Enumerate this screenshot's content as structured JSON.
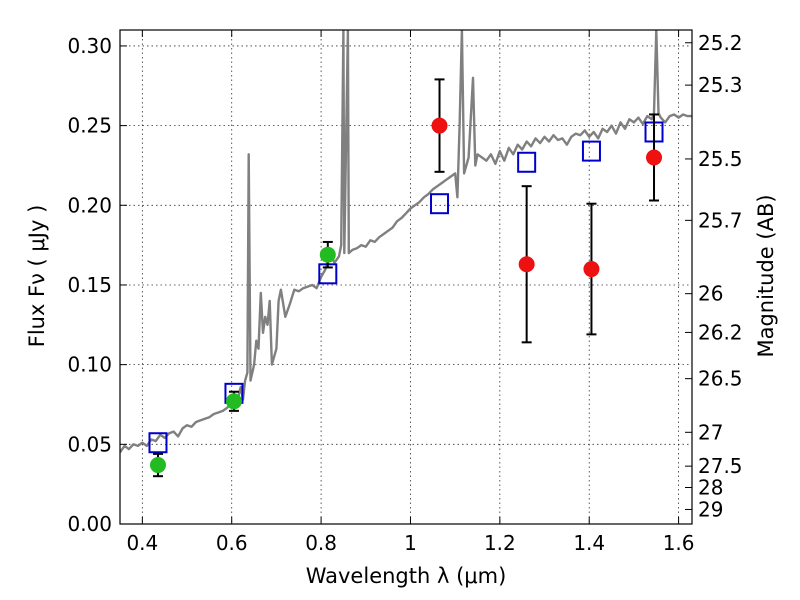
{
  "chart_data": {
    "type": "scatter",
    "xlabel": "Wavelength  λ (μm)",
    "ylabel": "Flux  Fν  ( μJy )",
    "ylabel_right": "Magnitude (AB)",
    "xlim": [
      0.35,
      1.63
    ],
    "ylim": [
      0.0,
      0.31
    ],
    "grid": true,
    "x_ticks": [
      0.4,
      0.6,
      0.8,
      1.0,
      1.2,
      1.4,
      1.6
    ],
    "x_tick_labels": [
      "0.4",
      "0.6",
      "0.8",
      "1",
      "1.2",
      "1.4",
      "1.6"
    ],
    "y_ticks": [
      0.0,
      0.05,
      0.1,
      0.15,
      0.2,
      0.25,
      0.3
    ],
    "y_tick_labels": [
      "0.00",
      "0.05",
      "0.10",
      "0.15",
      "0.20",
      "0.25",
      "0.30"
    ],
    "right_ticks": [
      {
        "mag": 25.2,
        "label": "25.2"
      },
      {
        "mag": 25.3,
        "label": "25.3"
      },
      {
        "mag": 25.5,
        "label": "25.5"
      },
      {
        "mag": 25.7,
        "label": "25.7"
      },
      {
        "mag": 26.0,
        "label": "26"
      },
      {
        "mag": 26.2,
        "label": "26.2"
      },
      {
        "mag": 26.5,
        "label": "26.5"
      },
      {
        "mag": 27.0,
        "label": "27"
      },
      {
        "mag": 27.5,
        "label": "27.5"
      },
      {
        "mag": 28.0,
        "label": "28"
      },
      {
        "mag": 29.0,
        "label": "29"
      }
    ],
    "series": [
      {
        "type": "line",
        "color": "#808080",
        "points": [
          [
            0.35,
            0.045
          ],
          [
            0.36,
            0.049
          ],
          [
            0.37,
            0.047
          ],
          [
            0.38,
            0.05
          ],
          [
            0.39,
            0.049
          ],
          [
            0.4,
            0.051
          ],
          [
            0.41,
            0.049
          ],
          [
            0.42,
            0.053
          ],
          [
            0.43,
            0.052
          ],
          [
            0.44,
            0.056
          ],
          [
            0.45,
            0.054
          ],
          [
            0.46,
            0.057
          ],
          [
            0.47,
            0.058
          ],
          [
            0.48,
            0.055
          ],
          [
            0.49,
            0.06
          ],
          [
            0.5,
            0.062
          ],
          [
            0.51,
            0.061
          ],
          [
            0.52,
            0.064
          ],
          [
            0.53,
            0.065
          ],
          [
            0.54,
            0.066
          ],
          [
            0.55,
            0.067
          ],
          [
            0.56,
            0.069
          ],
          [
            0.57,
            0.07
          ],
          [
            0.58,
            0.071
          ],
          [
            0.59,
            0.073
          ],
          [
            0.6,
            0.076
          ],
          [
            0.61,
            0.078
          ],
          [
            0.615,
            0.08
          ],
          [
            0.62,
            0.086
          ],
          [
            0.625,
            0.078
          ],
          [
            0.63,
            0.09
          ],
          [
            0.635,
            0.095
          ],
          [
            0.638,
            0.232
          ],
          [
            0.642,
            0.09
          ],
          [
            0.65,
            0.1
          ],
          [
            0.655,
            0.115
          ],
          [
            0.66,
            0.11
          ],
          [
            0.665,
            0.145
          ],
          [
            0.67,
            0.12
          ],
          [
            0.675,
            0.13
          ],
          [
            0.68,
            0.125
          ],
          [
            0.685,
            0.14
          ],
          [
            0.69,
            0.1
          ],
          [
            0.7,
            0.11
          ],
          [
            0.705,
            0.14
          ],
          [
            0.71,
            0.147
          ],
          [
            0.72,
            0.13
          ],
          [
            0.73,
            0.138
          ],
          [
            0.74,
            0.147
          ],
          [
            0.75,
            0.146
          ],
          [
            0.76,
            0.148
          ],
          [
            0.77,
            0.149
          ],
          [
            0.78,
            0.15
          ],
          [
            0.79,
            0.148
          ],
          [
            0.8,
            0.155
          ],
          [
            0.81,
            0.16
          ],
          [
            0.82,
            0.17
          ],
          [
            0.83,
            0.164
          ],
          [
            0.84,
            0.168
          ],
          [
            0.845,
            0.175
          ],
          [
            0.85,
            0.31
          ],
          [
            0.852,
            0.17
          ],
          [
            0.86,
            0.31
          ],
          [
            0.862,
            0.17
          ],
          [
            0.87,
            0.172
          ],
          [
            0.88,
            0.173
          ],
          [
            0.89,
            0.175
          ],
          [
            0.9,
            0.174
          ],
          [
            0.91,
            0.178
          ],
          [
            0.92,
            0.177
          ],
          [
            0.93,
            0.18
          ],
          [
            0.94,
            0.182
          ],
          [
            0.95,
            0.184
          ],
          [
            0.96,
            0.186
          ],
          [
            0.97,
            0.19
          ],
          [
            0.98,
            0.192
          ],
          [
            0.99,
            0.195
          ],
          [
            1.0,
            0.198
          ],
          [
            1.01,
            0.2
          ],
          [
            1.02,
            0.202
          ],
          [
            1.03,
            0.205
          ],
          [
            1.04,
            0.207
          ],
          [
            1.05,
            0.21
          ],
          [
            1.06,
            0.212
          ],
          [
            1.07,
            0.214
          ],
          [
            1.08,
            0.216
          ],
          [
            1.09,
            0.218
          ],
          [
            1.1,
            0.22
          ],
          [
            1.105,
            0.205
          ],
          [
            1.11,
            0.25
          ],
          [
            1.115,
            0.31
          ],
          [
            1.12,
            0.22
          ],
          [
            1.13,
            0.23
          ],
          [
            1.14,
            0.28
          ],
          [
            1.145,
            0.225
          ],
          [
            1.15,
            0.232
          ],
          [
            1.16,
            0.23
          ],
          [
            1.17,
            0.228
          ],
          [
            1.18,
            0.232
          ],
          [
            1.19,
            0.226
          ],
          [
            1.2,
            0.234
          ],
          [
            1.21,
            0.228
          ],
          [
            1.22,
            0.236
          ],
          [
            1.23,
            0.232
          ],
          [
            1.24,
            0.238
          ],
          [
            1.25,
            0.235
          ],
          [
            1.26,
            0.24
          ],
          [
            1.27,
            0.237
          ],
          [
            1.28,
            0.242
          ],
          [
            1.29,
            0.239
          ],
          [
            1.3,
            0.243
          ],
          [
            1.31,
            0.24
          ],
          [
            1.32,
            0.244
          ],
          [
            1.33,
            0.241
          ],
          [
            1.34,
            0.242
          ],
          [
            1.35,
            0.238
          ],
          [
            1.36,
            0.243
          ],
          [
            1.37,
            0.245
          ],
          [
            1.38,
            0.244
          ],
          [
            1.39,
            0.247
          ],
          [
            1.4,
            0.243
          ],
          [
            1.41,
            0.246
          ],
          [
            1.42,
            0.242
          ],
          [
            1.43,
            0.248
          ],
          [
            1.44,
            0.246
          ],
          [
            1.45,
            0.25
          ],
          [
            1.46,
            0.245
          ],
          [
            1.47,
            0.252
          ],
          [
            1.48,
            0.248
          ],
          [
            1.49,
            0.254
          ],
          [
            1.5,
            0.252
          ],
          [
            1.51,
            0.255
          ],
          [
            1.52,
            0.251
          ],
          [
            1.53,
            0.256
          ],
          [
            1.54,
            0.254
          ],
          [
            1.545,
            0.258
          ],
          [
            1.55,
            0.31
          ],
          [
            1.555,
            0.258
          ],
          [
            1.56,
            0.255
          ],
          [
            1.57,
            0.252
          ],
          [
            1.58,
            0.256
          ],
          [
            1.59,
            0.257
          ],
          [
            1.6,
            0.255
          ],
          [
            1.61,
            0.257
          ],
          [
            1.62,
            0.256
          ],
          [
            1.63,
            0.256
          ]
        ]
      },
      {
        "type": "markers",
        "marker": "square-open",
        "color": "#0000cc",
        "points": [
          [
            0.435,
            0.051
          ],
          [
            0.605,
            0.082
          ],
          [
            0.815,
            0.157
          ],
          [
            1.065,
            0.201
          ],
          [
            1.26,
            0.227
          ],
          [
            1.405,
            0.234
          ],
          [
            1.545,
            0.246
          ]
        ]
      },
      {
        "type": "markers",
        "marker": "circle",
        "color": "#22bb22",
        "points": [
          {
            "x": 0.435,
            "y": 0.037,
            "err": 0.007
          },
          {
            "x": 0.605,
            "y": 0.077,
            "err": 0.006
          },
          {
            "x": 0.815,
            "y": 0.169,
            "err": 0.008
          }
        ]
      },
      {
        "type": "markers",
        "marker": "circle",
        "color": "#ee1111",
        "points": [
          {
            "x": 1.065,
            "y": 0.25,
            "err": 0.029
          },
          {
            "x": 1.26,
            "y": 0.163,
            "err": 0.049
          },
          {
            "x": 1.405,
            "y": 0.16,
            "err": 0.041
          },
          {
            "x": 1.545,
            "y": 0.23,
            "err": 0.027
          }
        ]
      }
    ]
  }
}
